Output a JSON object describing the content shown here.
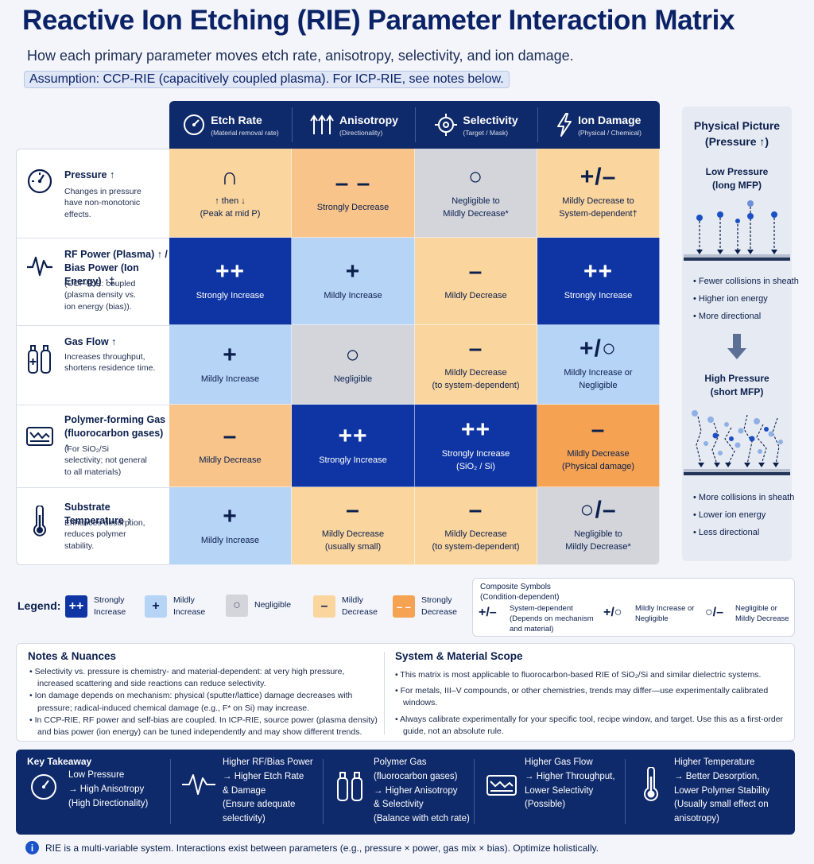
{
  "header": {
    "title": "Reactive Ion Etching (RIE) Parameter Interaction Matrix",
    "subtitle": "How each primary parameter moves etch rate, anisotropy, selectivity, and ion damage.",
    "assumption": "Assumption: CCP-RIE (capacitively coupled plasma). For ICP-RIE, see notes below."
  },
  "columns": [
    {
      "title": "Etch Rate",
      "sub": "(Material removal rate)",
      "icon": "gauge-icon"
    },
    {
      "title": "Anisotropy",
      "sub": "(Directionality)",
      "icon": "up-arrows-icon"
    },
    {
      "title": "Selectivity",
      "sub": "(Target / Mask)",
      "icon": "target-icon"
    },
    {
      "title": "Ion Damage",
      "sub": "(Physical / Chemical)",
      "icon": "lightning-icon"
    }
  ],
  "rows": [
    {
      "title": "Pressure ↑",
      "desc": "Changes in pressure have non-monotonic effects.",
      "icon": "gauge-icon",
      "cells": [
        {
          "sym": "∩",
          "l1": "↑ then ↓",
          "l2": "(Peak at mid P)",
          "cls": "c-md"
        },
        {
          "sym": "– –",
          "l1": "Strongly Decrease",
          "l2": "",
          "cls": "c-mdl"
        },
        {
          "sym": "○",
          "l1": "Negligible to",
          "l2": "Mildly Decrease*",
          "cls": "c-ng"
        },
        {
          "sym": "+/–",
          "l1": "Mildly Decrease to",
          "l2": "System-dependent†",
          "cls": "c-md"
        }
      ]
    },
    {
      "title": "RF Power (Plasma) ↑ / Bias Power (Ion Energy) ↑‡",
      "desc": "(CCP-RIE: coupled (plasma density vs. ion energy (bias)).",
      "icon": "waveform-icon",
      "cells": [
        {
          "sym": "++",
          "l1": "Strongly Increase",
          "l2": "",
          "cls": "c-si"
        },
        {
          "sym": "+",
          "l1": "Mildly Increase",
          "l2": "",
          "cls": "c-mi"
        },
        {
          "sym": "–",
          "l1": "Mildly Decrease",
          "l2": "",
          "cls": "c-md"
        },
        {
          "sym": "++",
          "l1": "Strongly Increase",
          "l2": "",
          "cls": "c-si"
        }
      ]
    },
    {
      "title": "Gas Flow ↑",
      "desc": "Increases throughput, shortens residence time.",
      "icon": "gas-cylinder-icon",
      "cells": [
        {
          "sym": "+",
          "l1": "Mildly Increase",
          "l2": "",
          "cls": "c-mi"
        },
        {
          "sym": "○",
          "l1": "Negligible",
          "l2": "",
          "cls": "c-ng"
        },
        {
          "sym": "–",
          "l1": "Mildly Decrease",
          "l2": "(to system-dependent)",
          "cls": "c-md"
        },
        {
          "sym": "+/○",
          "l1": "Mildly Increase or",
          "l2": "Negligible",
          "cls": "c-mi"
        }
      ]
    },
    {
      "title": "Polymer-forming Gas (fluorocarbon gases) ↑",
      "desc": "(For SiO₂/Si selectivity; not general to all materials)",
      "icon": "polymer-tray-icon",
      "cells": [
        {
          "sym": "–",
          "l1": "Mildly Decrease",
          "l2": "",
          "cls": "c-mdl"
        },
        {
          "sym": "++",
          "l1": "Strongly Increase",
          "l2": "",
          "cls": "c-si"
        },
        {
          "sym": "++",
          "l1": "Strongly Increase",
          "l2": "(SiO₂ / Si)",
          "cls": "c-si"
        },
        {
          "sym": "–",
          "l1": "Mildly Decrease",
          "l2": "(Physical damage)",
          "cls": "c-sd"
        }
      ]
    },
    {
      "title": "Substrate Temperature ↑",
      "desc": "Enhances desorption, reduces polymer stability.",
      "icon": "thermometer-icon",
      "cells": [
        {
          "sym": "+",
          "l1": "Mildly Increase",
          "l2": "",
          "cls": "c-mi"
        },
        {
          "sym": "–",
          "l1": "Mildly Decrease",
          "l2": "(usually small)",
          "cls": "c-md"
        },
        {
          "sym": "–",
          "l1": "Mildly Decrease",
          "l2": "(to system-dependent)",
          "cls": "c-md"
        },
        {
          "sym": "○/–",
          "l1": "Negligible to",
          "l2": "Mildly Decrease*",
          "cls": "c-ng"
        }
      ]
    }
  ],
  "side": {
    "title": "Physical Picture (Pressure ↑)",
    "low": "Low Pressure (long MFP)",
    "low_bullets": [
      "Fewer collisions in sheath",
      "Higher ion energy",
      "More directional"
    ],
    "high": "High Pressure (short MFP)",
    "high_bullets": [
      "More collisions in sheath",
      "Lower ion energy",
      "Less directional"
    ]
  },
  "legend": {
    "label": "Legend:",
    "items": [
      {
        "sym": "++",
        "text": "Strongly Increase",
        "color": "#0e35a3"
      },
      {
        "sym": "+",
        "text": "Mildly Increase",
        "color": "#b6d4f6"
      },
      {
        "sym": "○",
        "text": "Negligible",
        "color": "#d3d5db"
      },
      {
        "sym": "–",
        "text": "Mildly Decrease",
        "color": "#fbd59e"
      },
      {
        "sym": "– –",
        "text": "Strongly Decrease",
        "color": "#f5a252"
      }
    ]
  },
  "composite": {
    "title": "Composite Symbols",
    "sub": "(Condition-dependent)",
    "items": [
      {
        "sym": "+/–",
        "text": "System-dependent (Depends on mechanism and material)"
      },
      {
        "sym": "+/○",
        "text": "Mildly Increase or Negligible"
      },
      {
        "sym": "○/–",
        "text": "Negligible or Mildly Decrease"
      }
    ]
  },
  "notes": {
    "title": "Notes & Nuances",
    "items": [
      "Selectivity vs. pressure is chemistry- and material-dependent: at very high pressure, increased scattering and side reactions can reduce selectivity.",
      "Ion damage depends on mechanism: physical (sputter/lattice) damage decreases with pressure; radical-induced chemical damage (e.g., F* on Si) may increase.",
      "In CCP-RIE, RF power and self-bias are coupled. In ICP-RIE, source power (plasma density) and bias power (ion energy) can be tuned independently and may show different trends."
    ]
  },
  "scope": {
    "title": "System & Material Scope",
    "items": [
      "This matrix is most applicable to fluorocarbon-based RIE of SiO₂/Si and similar dielectric systems.",
      "For metals, III–V compounds, or other chemistries, trends may differ—use experimentally calibrated windows.",
      "Always calibrate experimentally for your specific tool, recipe window, and target. Use this as a first-order guide, not an absolute rule."
    ]
  },
  "takeaway": {
    "label": "Key Takeaway",
    "items": [
      {
        "icon": "gauge-icon",
        "lines": [
          "Low Pressure",
          "→ High Anisotropy",
          "(High Directionality)"
        ]
      },
      {
        "icon": "waveform-icon",
        "lines": [
          "Higher RF/Bias Power",
          "→ Higher Etch Rate",
          "& Damage",
          "(Ensure adequate",
          "selectivity)"
        ]
      },
      {
        "icon": "gas-cylinder-icon",
        "lines": [
          "Polymer Gas",
          "(fluorocarbon gases)",
          "→ Higher Anisotropy",
          "& Selectivity",
          "(Balance with etch rate)"
        ]
      },
      {
        "icon": "polymer-tray-icon",
        "lines": [
          "Higher Gas Flow",
          "→ Higher Throughput,",
          "Lower Selectivity",
          "(Possible)"
        ]
      },
      {
        "icon": "thermometer-icon",
        "lines": [
          "Higher Temperature",
          "→ Better Desorption,",
          "Lower Polymer Stability",
          "(Usually small effect on",
          "anisotropy)"
        ]
      }
    ]
  },
  "footer": "RIE is a multi-variable system. Interactions exist between parameters (e.g., pressure × power, gas mix × bias). Optimize holistically."
}
